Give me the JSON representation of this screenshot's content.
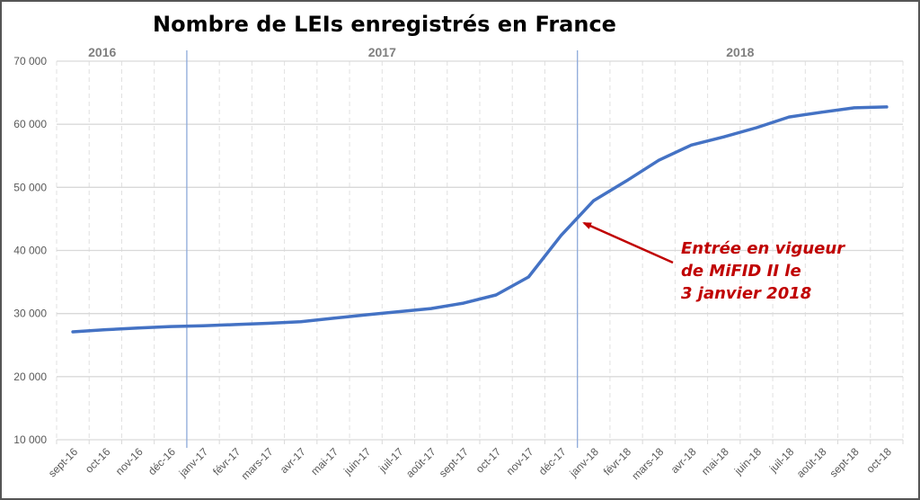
{
  "chart_data": {
    "type": "line",
    "title": "Nombre de LEIs enregistrés en France",
    "xlabel": "",
    "ylabel": "",
    "ylim": [
      10000,
      70000
    ],
    "yticks": [
      10000,
      20000,
      30000,
      40000,
      50000,
      60000,
      70000
    ],
    "ytick_labels": [
      "10 000",
      "20 000",
      "30 000",
      "40 000",
      "50 000",
      "60 000",
      "70 000"
    ],
    "grid": true,
    "categories": [
      "sept-16",
      "oct-16",
      "nov-16",
      "déc-16",
      "janv-17",
      "févr-17",
      "mars-17",
      "avr-17",
      "mai-17",
      "juin-17",
      "juil-17",
      "août-17",
      "sept-17",
      "oct-17",
      "nov-17",
      "déc-17",
      "janv-18",
      "févr-18",
      "mars-18",
      "avr-18",
      "mai-18",
      "juin-18",
      "juil-18",
      "août-18",
      "sept-18",
      "oct-18"
    ],
    "series": [
      {
        "name": "LEIs enregistrés",
        "color": "#4472c4",
        "values": [
          27100,
          27450,
          27700,
          27950,
          28050,
          28250,
          28450,
          28700,
          29250,
          29800,
          30300,
          30800,
          31650,
          32950,
          35800,
          42400,
          47900,
          51000,
          54300,
          56700,
          58000,
          59450,
          61150,
          61900,
          62600,
          62750
        ]
      }
    ],
    "year_groups": [
      {
        "label": "2016",
        "start": 0,
        "end": 3
      },
      {
        "label": "2017",
        "start": 4,
        "end": 15
      },
      {
        "label": "2018",
        "start": 16,
        "end": 25
      }
    ],
    "separator_color": "#8eaadb",
    "annotation": {
      "lines": [
        "Entrée en vigueur",
        "de MiFID II le",
        "3 janvier 2018"
      ],
      "color": "#c00000",
      "points_to_category": "janv-18"
    },
    "legend": "none"
  }
}
